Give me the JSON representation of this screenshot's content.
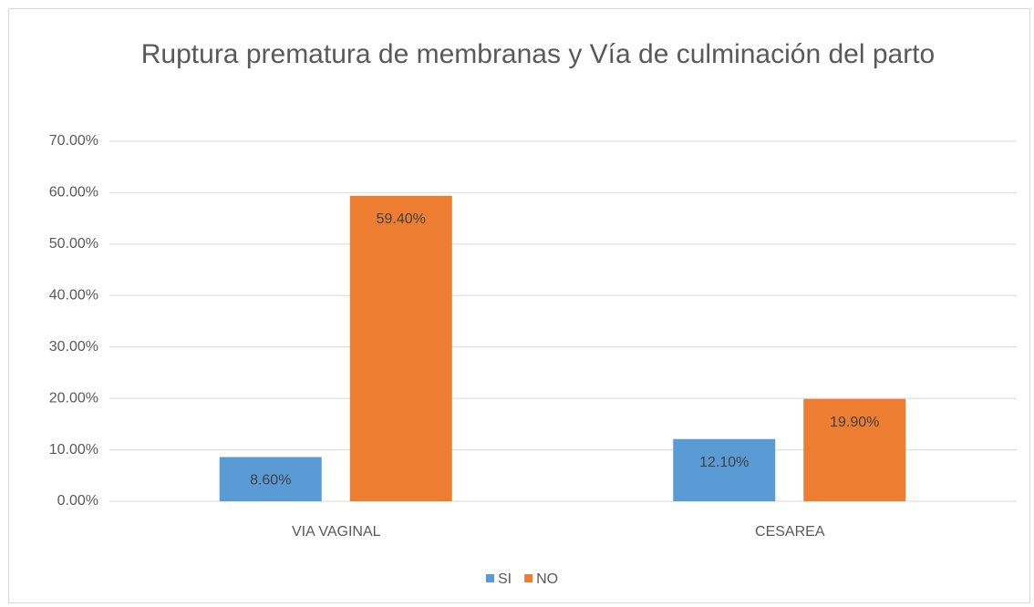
{
  "chart_data": {
    "type": "bar",
    "title": "Ruptura prematura de membranas y Vía de culminación del parto",
    "categories": [
      "VIA VAGINAL",
      "CESAREA"
    ],
    "series": [
      {
        "name": "SI",
        "color": "#5b9bd5",
        "values": [
          8.6,
          12.1
        ],
        "value_labels": [
          "8.60%",
          "12.10%"
        ]
      },
      {
        "name": "NO",
        "color": "#ed7d31",
        "values": [
          59.4,
          19.9
        ],
        "value_labels": [
          "59.40%",
          "19.90%"
        ]
      }
    ],
    "ylim": [
      0,
      70
    ],
    "yticks": [
      {
        "value": 0,
        "label": "0.00%"
      },
      {
        "value": 10,
        "label": "10.00%"
      },
      {
        "value": 20,
        "label": "20.00%"
      },
      {
        "value": 30,
        "label": "30.00%"
      },
      {
        "value": 40,
        "label": "40.00%"
      },
      {
        "value": 50,
        "label": "50.00%"
      },
      {
        "value": 60,
        "label": "60.00%"
      },
      {
        "value": 70,
        "label": "70.00%"
      }
    ],
    "grid": true,
    "legend": "bottom"
  }
}
